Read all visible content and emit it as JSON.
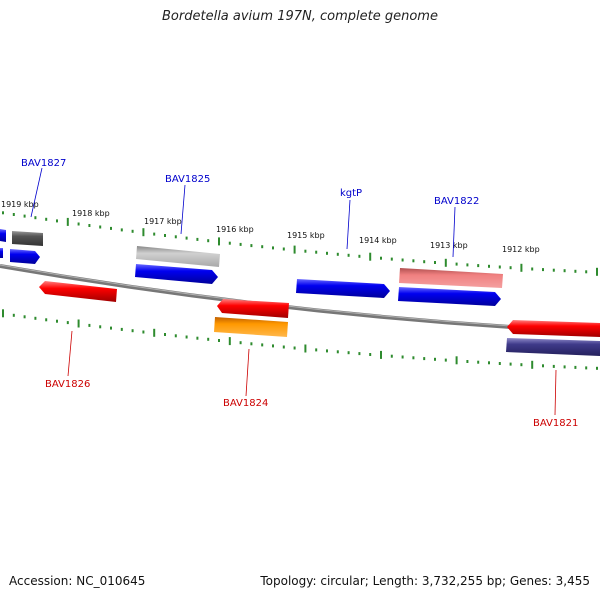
{
  "title": "Bordetella avium 197N, complete genome",
  "footer": {
    "accession": "Accession: NC_010645",
    "summary": "Topology: circular; Length: 3,732,255 bp; Genes: 3,455"
  },
  "scale_ticks": [
    "1919 kbp",
    "1918 kbp",
    "1917 kbp",
    "1916 kbp",
    "1915 kbp",
    "1914 kbp",
    "1913 kbp",
    "1912 kbp"
  ],
  "gene_labels": {
    "top": [
      "BAV1827",
      "BAV1825",
      "kgtP",
      "BAV1822"
    ],
    "bottom": [
      "BAV1826",
      "BAV1824",
      "BAV1821"
    ]
  },
  "colors": {
    "forward_label": "#0000cc",
    "reverse_label": "#cc0000",
    "backbone": "#777777",
    "tick": "#2e8b2e",
    "blue": "#0000f0",
    "red": "#ff0000",
    "grey": "#cccccc",
    "darkgrey": "#555555",
    "pink": "#f08080",
    "orange": "#ff9900",
    "navy": "#3f3a8a"
  }
}
